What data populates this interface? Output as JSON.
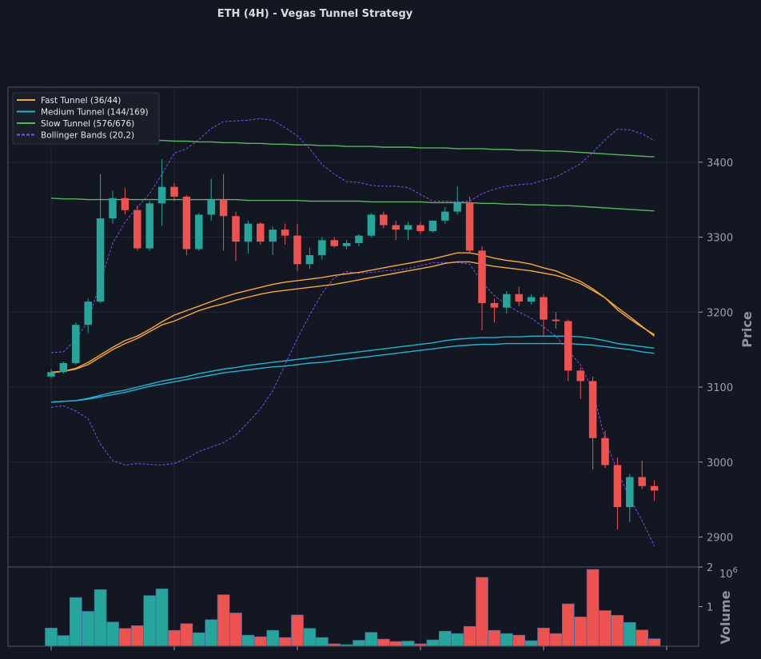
{
  "chart_data": {
    "type": "candlestick",
    "title": "ETH (4H) - Vegas Tunnel Strategy",
    "colors": {
      "background": "#131722",
      "up": "#26a69a",
      "down": "#ef5350",
      "fast": "#f7a83a",
      "medium": "#1fb6d4",
      "slow": "#56b85a",
      "bollinger": "#7b4ff2",
      "grid": "#232838",
      "frame": "#434a5a"
    },
    "price_panel": {
      "ylabel": "Price",
      "ylim": [
        2860,
        3500
      ],
      "yticks": [
        2900,
        3000,
        3100,
        3200,
        3300,
        3400
      ],
      "grid": true,
      "legend_position": "top-left",
      "legend": [
        {
          "label": "Fast Tunnel (36/44)",
          "color": "#f7a83a",
          "dashed": false
        },
        {
          "label": "Medium Tunnel (144/169)",
          "color": "#1fb6d4",
          "dashed": false
        },
        {
          "label": "Slow Tunnel (576/676)",
          "color": "#56b85a",
          "dashed": false
        },
        {
          "label": "Bollinger Bands (20,2)",
          "color": "#7b4ff2",
          "dashed": true
        }
      ]
    },
    "volume_panel": {
      "ylabel": "Volume",
      "scale_label": "10",
      "scale_exponent": "6",
      "ylim": [
        0,
        2000000
      ],
      "yticks": [
        1000000,
        2000000
      ],
      "ytick_labels": [
        "1",
        "2"
      ]
    },
    "x_count": 50,
    "candles": [
      [
        3114,
        3124,
        3112,
        3120
      ],
      [
        3120,
        3134,
        3118,
        3132
      ],
      [
        3132,
        3186,
        3130,
        3183
      ],
      [
        3183,
        3218,
        3172,
        3214
      ],
      [
        3214,
        3384,
        3212,
        3325
      ],
      [
        3325,
        3362,
        3318,
        3352
      ],
      [
        3352,
        3366,
        3330,
        3336
      ],
      [
        3336,
        3342,
        3282,
        3285
      ],
      [
        3285,
        3348,
        3282,
        3345
      ],
      [
        3345,
        3404,
        3315,
        3367
      ],
      [
        3367,
        3372,
        3348,
        3354
      ],
      [
        3354,
        3356,
        3276,
        3284
      ],
      [
        3284,
        3332,
        3282,
        3330
      ],
      [
        3330,
        3378,
        3322,
        3350
      ],
      [
        3350,
        3384,
        3282,
        3328
      ],
      [
        3328,
        3334,
        3268,
        3294
      ],
      [
        3294,
        3322,
        3278,
        3318
      ],
      [
        3318,
        3320,
        3290,
        3294
      ],
      [
        3294,
        3314,
        3276,
        3310
      ],
      [
        3310,
        3318,
        3290,
        3302
      ],
      [
        3302,
        3318,
        3255,
        3264
      ],
      [
        3264,
        3286,
        3258,
        3276
      ],
      [
        3276,
        3300,
        3270,
        3296
      ],
      [
        3296,
        3300,
        3286,
        3288
      ],
      [
        3288,
        3296,
        3284,
        3292
      ],
      [
        3292,
        3304,
        3288,
        3302
      ],
      [
        3302,
        3332,
        3300,
        3330
      ],
      [
        3330,
        3334,
        3312,
        3316
      ],
      [
        3316,
        3322,
        3296,
        3310
      ],
      [
        3310,
        3320,
        3296,
        3316
      ],
      [
        3316,
        3320,
        3304,
        3308
      ],
      [
        3308,
        3322,
        3306,
        3322
      ],
      [
        3322,
        3340,
        3318,
        3334
      ],
      [
        3334,
        3368,
        3330,
        3346
      ],
      [
        3346,
        3354,
        3278,
        3282
      ],
      [
        3282,
        3288,
        3176,
        3212
      ],
      [
        3212,
        3218,
        3186,
        3206
      ],
      [
        3206,
        3228,
        3198,
        3224
      ],
      [
        3224,
        3234,
        3208,
        3214
      ],
      [
        3214,
        3224,
        3210,
        3220
      ],
      [
        3220,
        3224,
        3168,
        3190
      ],
      [
        3190,
        3200,
        3178,
        3188
      ],
      [
        3188,
        3190,
        3108,
        3122
      ],
      [
        3122,
        3126,
        3084,
        3108
      ],
      [
        3108,
        3114,
        2990,
        3032
      ],
      [
        3032,
        3042,
        2992,
        2996
      ],
      [
        2996,
        3006,
        2910,
        2940
      ],
      [
        2940,
        2984,
        2920,
        2980
      ],
      [
        2980,
        3002,
        2964,
        2968
      ],
      [
        2968,
        2976,
        2948,
        2962
      ]
    ],
    "volumes": [
      460000,
      270000,
      1230000,
      880000,
      1430000,
      610000,
      450000,
      520000,
      1280000,
      1450000,
      400000,
      570000,
      340000,
      670000,
      1300000,
      840000,
      280000,
      240000,
      400000,
      220000,
      790000,
      450000,
      220000,
      60000,
      40000,
      150000,
      350000,
      180000,
      120000,
      130000,
      60000,
      160000,
      380000,
      320000,
      500000,
      1740000,
      400000,
      320000,
      280000,
      140000,
      460000,
      320000,
      1070000,
      740000,
      1940000,
      900000,
      780000,
      600000,
      410000,
      190000
    ],
    "fast_tunnel_1": [
      3120,
      3121,
      3124,
      3130,
      3140,
      3150,
      3158,
      3165,
      3174,
      3183,
      3188,
      3195,
      3202,
      3207,
      3211,
      3216,
      3220,
      3224,
      3227,
      3229,
      3231,
      3233,
      3235,
      3237,
      3240,
      3243,
      3246,
      3249,
      3252,
      3255,
      3258,
      3261,
      3265,
      3267,
      3267,
      3264,
      3261,
      3259,
      3257,
      3255,
      3252,
      3249,
      3244,
      3238,
      3229,
      3219,
      3206,
      3194,
      3181,
      3168
    ],
    "fast_tunnel_2": [
      3119,
      3121,
      3125,
      3133,
      3143,
      3153,
      3162,
      3168,
      3177,
      3187,
      3196,
      3202,
      3208,
      3214,
      3220,
      3225,
      3229,
      3233,
      3237,
      3240,
      3242,
      3244,
      3246,
      3249,
      3251,
      3253,
      3256,
      3259,
      3262,
      3265,
      3268,
      3271,
      3275,
      3279,
      3279,
      3276,
      3272,
      3269,
      3267,
      3264,
      3259,
      3255,
      3248,
      3241,
      3231,
      3219,
      3203,
      3191,
      3180,
      3170
    ],
    "medium_tunnel_1": [
      3080,
      3081,
      3082,
      3084,
      3087,
      3090,
      3093,
      3097,
      3101,
      3104,
      3107,
      3110,
      3113,
      3116,
      3119,
      3121,
      3123,
      3125,
      3127,
      3128,
      3130,
      3132,
      3133,
      3135,
      3137,
      3139,
      3141,
      3143,
      3145,
      3147,
      3149,
      3151,
      3153,
      3155,
      3156,
      3157,
      3157,
      3158,
      3158,
      3158,
      3158,
      3158,
      3158,
      3157,
      3156,
      3154,
      3152,
      3150,
      3147,
      3145
    ],
    "medium_tunnel_2": [
      3080,
      3081,
      3082,
      3085,
      3089,
      3093,
      3096,
      3100,
      3104,
      3108,
      3111,
      3114,
      3118,
      3121,
      3124,
      3126,
      3129,
      3131,
      3133,
      3135,
      3137,
      3139,
      3141,
      3143,
      3145,
      3147,
      3149,
      3151,
      3153,
      3155,
      3157,
      3159,
      3162,
      3164,
      3165,
      3166,
      3166,
      3167,
      3167,
      3168,
      3168,
      3168,
      3168,
      3167,
      3165,
      3162,
      3158,
      3156,
      3154,
      3152
    ],
    "slow_tunnel_1": [
      3352,
      3351,
      3351,
      3350,
      3350,
      3350,
      3350,
      3350,
      3350,
      3350,
      3350,
      3350,
      3350,
      3350,
      3350,
      3350,
      3349,
      3349,
      3349,
      3349,
      3349,
      3348,
      3348,
      3348,
      3348,
      3348,
      3347,
      3347,
      3347,
      3347,
      3347,
      3346,
      3346,
      3346,
      3346,
      3345,
      3345,
      3344,
      3344,
      3343,
      3343,
      3342,
      3342,
      3341,
      3340,
      3339,
      3338,
      3337,
      3336,
      3335
    ],
    "slow_tunnel_2": [
      3432,
      3432,
      3431,
      3431,
      3430,
      3430,
      3430,
      3430,
      3429,
      3429,
      3428,
      3428,
      3427,
      3427,
      3426,
      3426,
      3425,
      3425,
      3424,
      3424,
      3423,
      3423,
      3422,
      3422,
      3421,
      3421,
      3421,
      3420,
      3420,
      3420,
      3419,
      3419,
      3419,
      3418,
      3418,
      3418,
      3417,
      3417,
      3416,
      3416,
      3415,
      3415,
      3414,
      3413,
      3412,
      3411,
      3410,
      3409,
      3408,
      3407
    ],
    "bollinger_upper": [
      3146,
      3147,
      3163,
      3188,
      3240,
      3292,
      3320,
      3340,
      3358,
      3384,
      3412,
      3418,
      3430,
      3445,
      3454,
      3455,
      3456,
      3458,
      3456,
      3446,
      3435,
      3418,
      3397,
      3384,
      3374,
      3373,
      3369,
      3368,
      3368,
      3366,
      3357,
      3348,
      3348,
      3347,
      3348,
      3358,
      3364,
      3368,
      3370,
      3371,
      3376,
      3380,
      3389,
      3398,
      3413,
      3430,
      3444,
      3443,
      3438,
      3429
    ],
    "bollinger_lower": [
      3073,
      3075,
      3068,
      3058,
      3024,
      3002,
      2996,
      2998,
      2997,
      2996,
      2998,
      3005,
      3014,
      3020,
      3026,
      3036,
      3053,
      3071,
      3095,
      3130,
      3165,
      3196,
      3225,
      3246,
      3254,
      3252,
      3253,
      3255,
      3256,
      3258,
      3262,
      3266,
      3266,
      3266,
      3264,
      3240,
      3222,
      3210,
      3200,
      3192,
      3180,
      3168,
      3148,
      3130,
      3095,
      3030,
      2988,
      2952,
      2922,
      2888
    ]
  }
}
